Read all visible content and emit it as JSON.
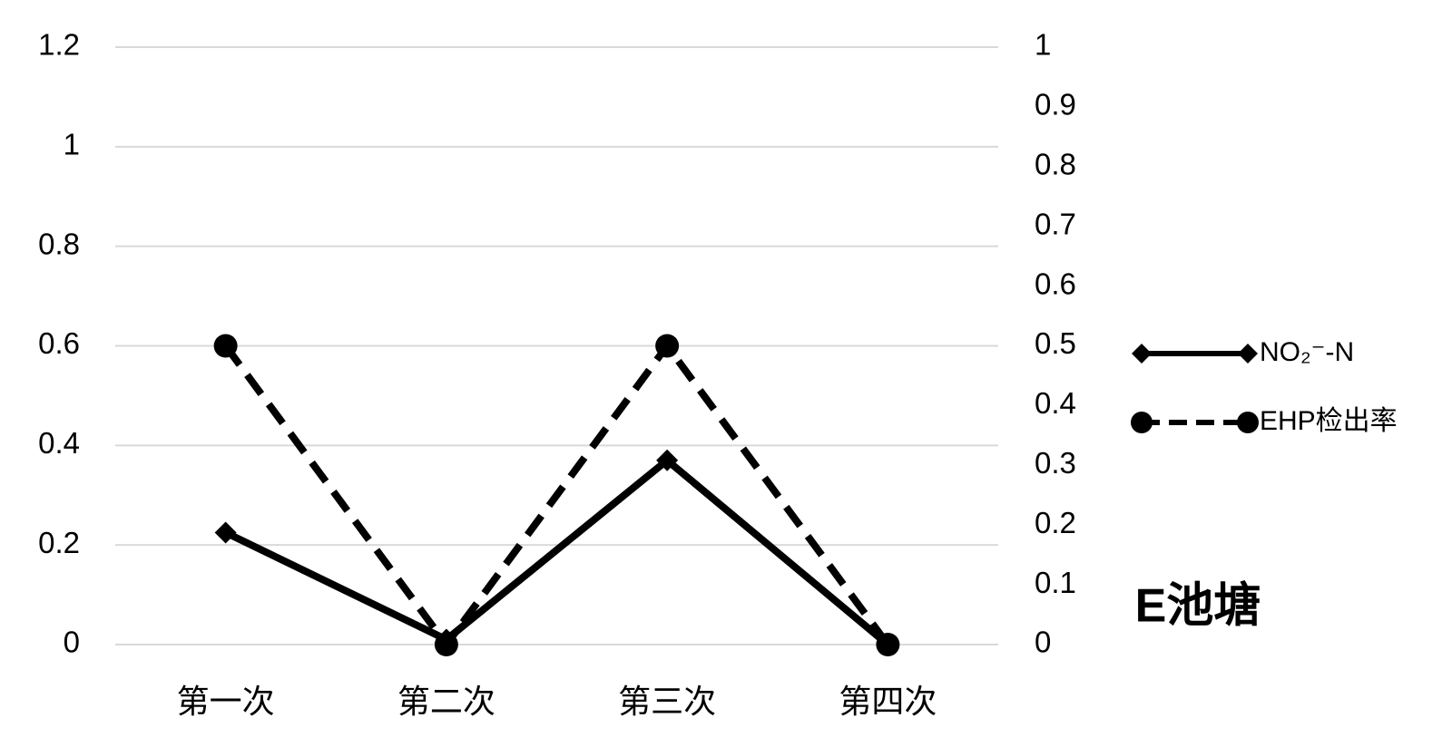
{
  "chart_data": {
    "type": "line",
    "annotation": "E池塘",
    "categories": [
      "第一次",
      "第二次",
      "第三次",
      "第四次"
    ],
    "series": [
      {
        "name": "NO₂⁻-N",
        "color": "#000000",
        "line_style": "solid",
        "marker": "diamond",
        "values": [
          0.225,
          0.01,
          0.37,
          0.0
        ]
      },
      {
        "name": "EHP检出率",
        "color": "#000000",
        "line_style": "dashed",
        "marker": "circle",
        "axis": "y2",
        "values": [
          0.5,
          0.0,
          0.5,
          0.0
        ]
      }
    ],
    "ylim": [
      0,
      1.2
    ],
    "yticks": [
      0,
      0.2,
      0.4,
      0.6,
      0.8,
      1,
      1.2
    ],
    "y2lim": [
      0,
      1
    ],
    "y2ticks": [
      0,
      0.1,
      0.2,
      0.3,
      0.4,
      0.5,
      0.6,
      0.7,
      0.8,
      0.9,
      1
    ],
    "grid": true,
    "legend": "right"
  }
}
